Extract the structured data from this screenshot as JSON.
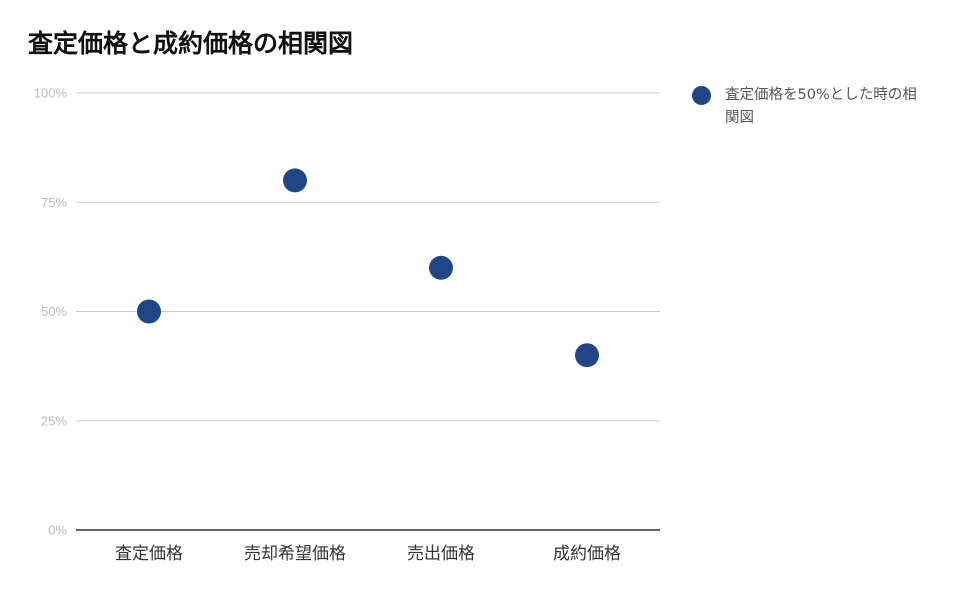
{
  "chart_data": {
    "type": "scatter",
    "title": "査定価格と成約価格の相関図",
    "categories": [
      "査定価格",
      "売却希望価格",
      "売出価格",
      "成約価格"
    ],
    "series": [
      {
        "name": "査定価格を50%とした時の相関図",
        "values": [
          50,
          80,
          60,
          40
        ]
      }
    ],
    "ylim": [
      0,
      100
    ],
    "yticks": [
      "0%",
      "25%",
      "50%",
      "75%",
      "100%"
    ],
    "grid": true,
    "legend_position": "right",
    "colors": {
      "series": "#1f4788",
      "grid": "#cccccc",
      "axis": "#333333"
    }
  }
}
